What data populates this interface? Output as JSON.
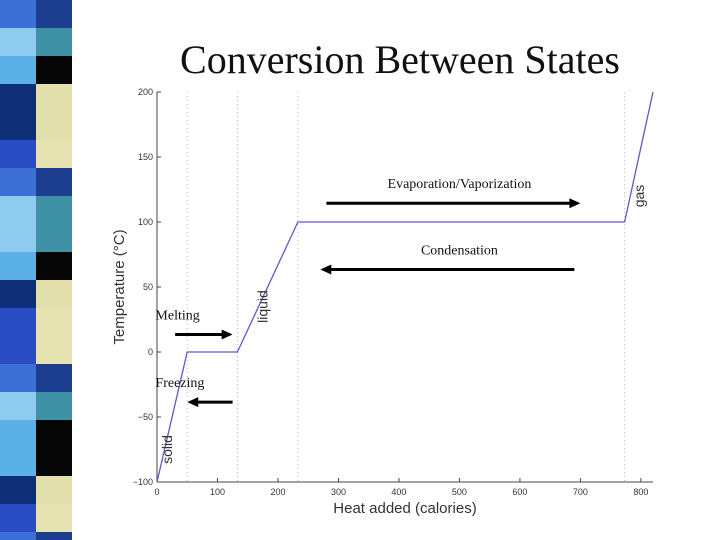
{
  "slide": {
    "title": "Conversion Between States"
  },
  "colors": {
    "stripe": [
      "#3E6FD6",
      "#3F92A6",
      "#0E2F78",
      "#E7E2B2",
      "#8FCBEF",
      "#060606",
      "#2A4DC4",
      "#1D3E8F",
      "#5CB0E8",
      "#E3DFAD"
    ],
    "curve": "#5B5BC8",
    "arrow": "#000000"
  },
  "chart_data": {
    "type": "line",
    "xlabel": "Heat added (calories)",
    "ylabel": "Temperature (°C)",
    "xlim": [
      0,
      820
    ],
    "ylim": [
      -100,
      200
    ],
    "xticks": [
      0,
      100,
      200,
      300,
      400,
      500,
      600,
      700,
      800
    ],
    "yticks": [
      -100,
      -50,
      0,
      50,
      100,
      150,
      200
    ],
    "xtick_labels": [
      "0",
      "100",
      "200",
      "300",
      "400",
      "500",
      "600",
      "700",
      "800"
    ],
    "ytick_labels": [
      "−100",
      "−50",
      "0",
      "50",
      "100",
      "150",
      "200"
    ],
    "series": [
      {
        "x": [
          0,
          50,
          133,
          233,
          773,
          820
        ],
        "y": [
          -100,
          0,
          0,
          100,
          100,
          200
        ]
      }
    ],
    "reference_lines_x": [
      50,
      133,
      233,
      773
    ],
    "regions": [
      {
        "label": "solid",
        "x": 25,
        "y": -75
      },
      {
        "label": "liquid",
        "x": 183,
        "y": 35
      },
      {
        "label": "gas",
        "x": 805,
        "y": 120
      }
    ],
    "annotations": [
      {
        "text": "Evaporation/Vaporization",
        "x": 500,
        "y": 126,
        "arrow_from": 280,
        "arrow_to": 700
      },
      {
        "text": "Condensation",
        "x": 500,
        "y": 75,
        "arrow_from": 690,
        "arrow_to": 270
      },
      {
        "text": "Melting",
        "x": 47,
        "y": 25,
        "arrow_from": 30,
        "arrow_to": 125
      },
      {
        "text": "Freezing",
        "x": 47,
        "y": -27,
        "arrow_from": 125,
        "arrow_to": 50
      }
    ]
  }
}
